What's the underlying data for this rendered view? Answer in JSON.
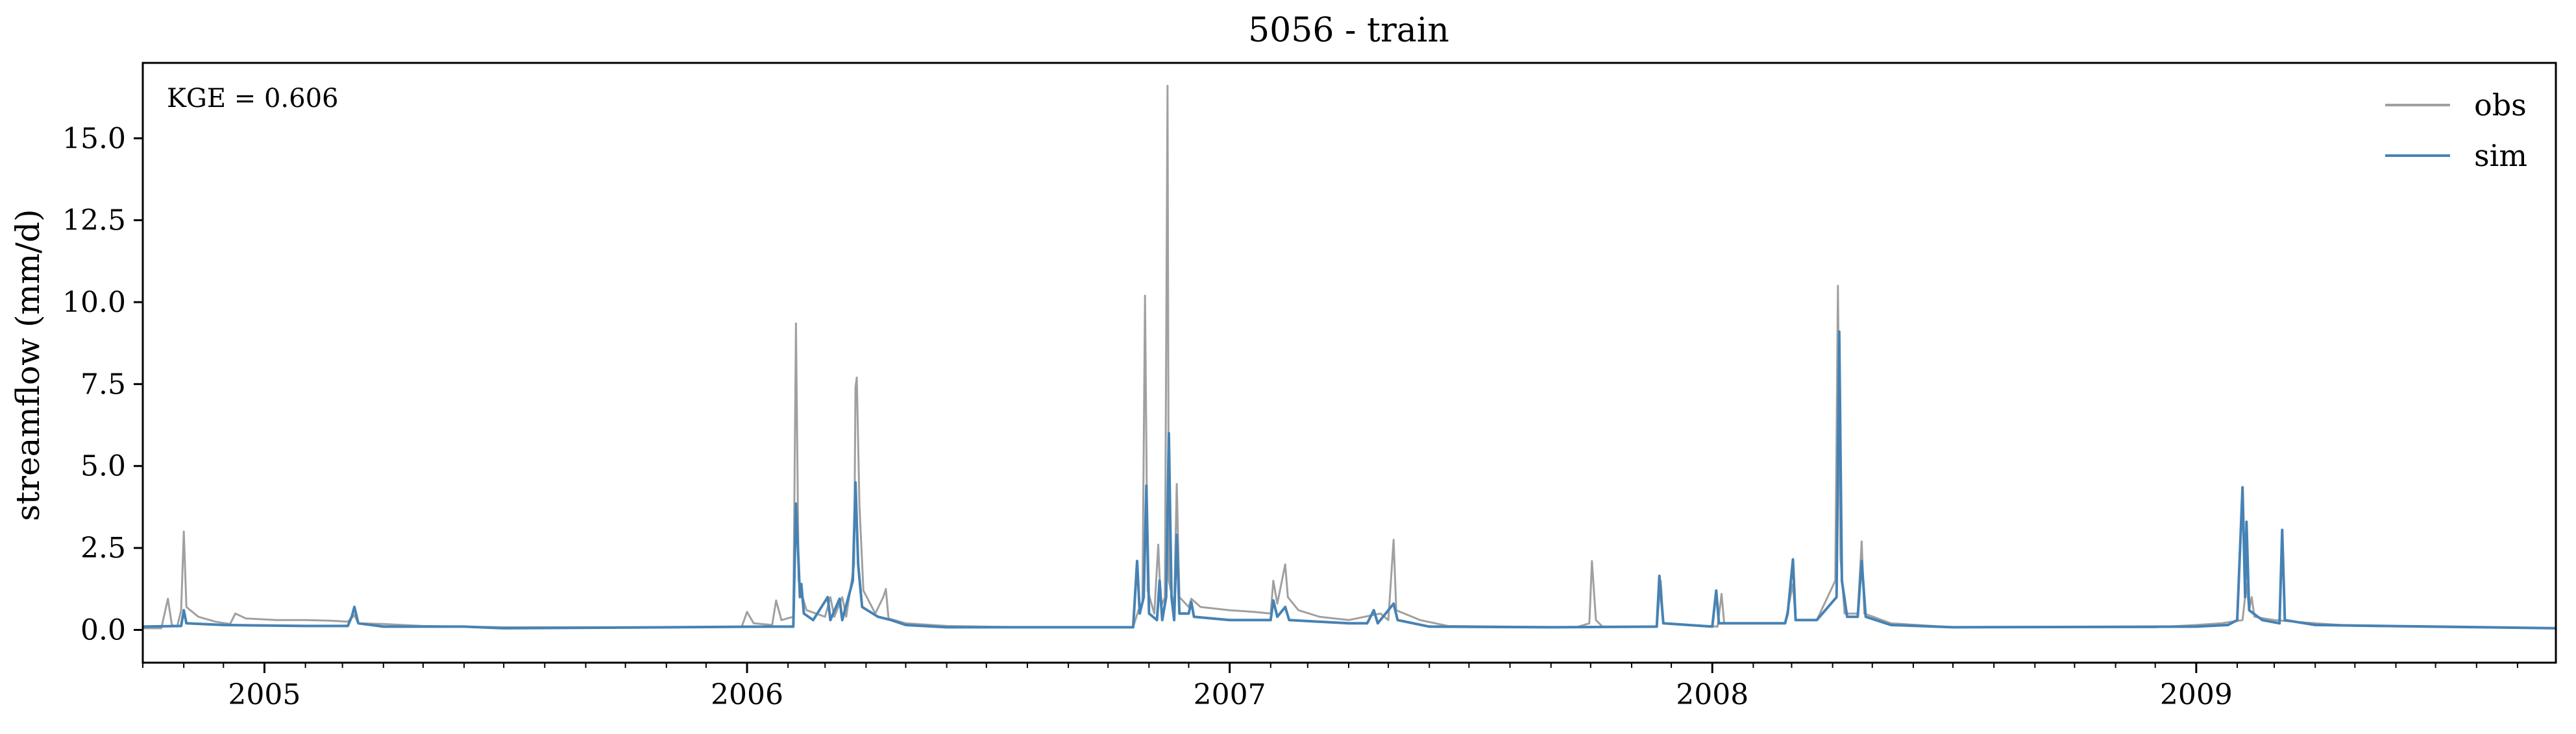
{
  "chart_data": {
    "type": "line",
    "title": "5056 - train",
    "xlabel": "",
    "ylabel": "streamflow (mm/d)",
    "annotation": "KGE = 0.606",
    "legend_position": "top-right",
    "grid": false,
    "xlim": [
      "2004-10-01",
      "2009-09-30"
    ],
    "ylim": [
      -1.0,
      17.3
    ],
    "x_ticks": [
      {
        "date": "2005-01-01",
        "label": "2005"
      },
      {
        "date": "2006-01-01",
        "label": "2006"
      },
      {
        "date": "2007-01-01",
        "label": "2007"
      },
      {
        "date": "2008-01-01",
        "label": "2008"
      },
      {
        "date": "2009-01-01",
        "label": "2009"
      }
    ],
    "y_ticks": [
      0.0,
      2.5,
      5.0,
      7.5,
      10.0,
      12.5,
      15.0
    ],
    "y_tick_labels": [
      "0.0",
      "2.5",
      "5.0",
      "7.5",
      "10.0",
      "12.5",
      "15.0"
    ],
    "series": [
      {
        "name": "obs",
        "color": "#a0a0a0",
        "points": [
          [
            "2004-10-01",
            0.05
          ],
          [
            "2004-10-15",
            0.05
          ],
          [
            "2004-10-20",
            0.95
          ],
          [
            "2004-10-23",
            0.15
          ],
          [
            "2004-10-27",
            0.1
          ],
          [
            "2004-10-30",
            0.6
          ],
          [
            "2004-11-01",
            3.0
          ],
          [
            "2004-11-03",
            0.7
          ],
          [
            "2004-11-12",
            0.4
          ],
          [
            "2004-11-25",
            0.25
          ],
          [
            "2004-12-06",
            0.18
          ],
          [
            "2004-12-10",
            0.5
          ],
          [
            "2004-12-18",
            0.35
          ],
          [
            "2005-01-10",
            0.3
          ],
          [
            "2005-02-01",
            0.3
          ],
          [
            "2005-02-20",
            0.28
          ],
          [
            "2005-03-05",
            0.25
          ],
          [
            "2005-03-10",
            0.45
          ],
          [
            "2005-03-13",
            0.2
          ],
          [
            "2005-04-01",
            0.18
          ],
          [
            "2005-05-01",
            0.12
          ],
          [
            "2005-07-01",
            0.08
          ],
          [
            "2005-12-01",
            0.08
          ],
          [
            "2005-12-28",
            0.1
          ],
          [
            "2006-01-01",
            0.55
          ],
          [
            "2006-01-06",
            0.2
          ],
          [
            "2006-01-20",
            0.15
          ],
          [
            "2006-01-23",
            0.9
          ],
          [
            "2006-01-27",
            0.3
          ],
          [
            "2006-02-05",
            0.4
          ],
          [
            "2006-02-07",
            9.35
          ],
          [
            "2006-02-09",
            1.5
          ],
          [
            "2006-02-12",
            1.0
          ],
          [
            "2006-02-15",
            0.6
          ],
          [
            "2006-03-01",
            0.4
          ],
          [
            "2006-03-05",
            1.0
          ],
          [
            "2006-03-08",
            0.4
          ],
          [
            "2006-03-14",
            1.0
          ],
          [
            "2006-03-17",
            0.4
          ],
          [
            "2006-03-23",
            2.0
          ],
          [
            "2006-03-24",
            7.4
          ],
          [
            "2006-03-25",
            7.7
          ],
          [
            "2006-03-27",
            3.8
          ],
          [
            "2006-03-30",
            1.2
          ],
          [
            "2006-04-08",
            0.5
          ],
          [
            "2006-04-14",
            1.0
          ],
          [
            "2006-04-16",
            1.25
          ],
          [
            "2006-04-18",
            0.35
          ],
          [
            "2006-05-01",
            0.2
          ],
          [
            "2006-06-01",
            0.12
          ],
          [
            "2006-08-01",
            0.08
          ],
          [
            "2006-10-20",
            0.08
          ],
          [
            "2006-10-24",
            0.6
          ],
          [
            "2006-10-27",
            0.8
          ],
          [
            "2006-10-29",
            10.2
          ],
          [
            "2006-10-31",
            1.2
          ],
          [
            "2006-11-05",
            0.5
          ],
          [
            "2006-11-08",
            2.6
          ],
          [
            "2006-11-10",
            0.7
          ],
          [
            "2006-11-13",
            1.0
          ],
          [
            "2006-11-15",
            16.6
          ],
          [
            "2006-11-16",
            1.5
          ],
          [
            "2006-11-20",
            0.7
          ],
          [
            "2006-11-22",
            4.45
          ],
          [
            "2006-11-24",
            1.0
          ],
          [
            "2006-12-01",
            0.7
          ],
          [
            "2006-12-03",
            0.95
          ],
          [
            "2006-12-10",
            0.7
          ],
          [
            "2007-01-01",
            0.6
          ],
          [
            "2007-01-20",
            0.55
          ],
          [
            "2007-02-01",
            0.5
          ],
          [
            "2007-02-03",
            1.5
          ],
          [
            "2007-02-06",
            0.8
          ],
          [
            "2007-02-12",
            2.0
          ],
          [
            "2007-02-14",
            1.0
          ],
          [
            "2007-02-22",
            0.6
          ],
          [
            "2007-03-10",
            0.4
          ],
          [
            "2007-04-01",
            0.3
          ],
          [
            "2007-04-25",
            0.5
          ],
          [
            "2007-05-01",
            0.3
          ],
          [
            "2007-05-05",
            2.75
          ],
          [
            "2007-05-07",
            0.6
          ],
          [
            "2007-05-25",
            0.3
          ],
          [
            "2007-06-15",
            0.12
          ],
          [
            "2007-09-20",
            0.08
          ],
          [
            "2007-09-30",
            0.2
          ],
          [
            "2007-10-02",
            2.1
          ],
          [
            "2007-10-05",
            0.3
          ],
          [
            "2007-10-10",
            0.1
          ],
          [
            "2007-11-20",
            0.1
          ],
          [
            "2007-11-23",
            1.5
          ],
          [
            "2007-11-25",
            0.2
          ],
          [
            "2008-01-05",
            0.1
          ],
          [
            "2008-01-08",
            1.1
          ],
          [
            "2008-01-10",
            0.2
          ],
          [
            "2008-02-25",
            0.2
          ],
          [
            "2008-02-27",
            0.6
          ],
          [
            "2008-03-02",
            1.4
          ],
          [
            "2008-03-04",
            0.3
          ],
          [
            "2008-03-20",
            0.3
          ],
          [
            "2008-04-03",
            1.5
          ],
          [
            "2008-04-05",
            10.5
          ],
          [
            "2008-04-07",
            2.2
          ],
          [
            "2008-04-10",
            0.5
          ],
          [
            "2008-04-20",
            0.5
          ],
          [
            "2008-04-23",
            2.7
          ],
          [
            "2008-04-25",
            0.5
          ],
          [
            "2008-05-15",
            0.2
          ],
          [
            "2008-07-01",
            0.08
          ],
          [
            "2008-12-01",
            0.08
          ],
          [
            "2009-01-01",
            0.15
          ],
          [
            "2009-01-20",
            0.2
          ],
          [
            "2009-02-05",
            0.3
          ],
          [
            "2009-02-08",
            1.4
          ],
          [
            "2009-02-10",
            0.6
          ],
          [
            "2009-02-12",
            1.0
          ],
          [
            "2009-02-14",
            0.4
          ],
          [
            "2009-03-01",
            0.3
          ],
          [
            "2009-04-01",
            0.2
          ],
          [
            "2009-05-01",
            0.12
          ],
          [
            "2009-09-30",
            0.05
          ]
        ]
      },
      {
        "name": "sim",
        "color": "#4682b4",
        "points": [
          [
            "2004-10-01",
            0.1
          ],
          [
            "2004-10-30",
            0.12
          ],
          [
            "2004-11-01",
            0.6
          ],
          [
            "2004-11-03",
            0.2
          ],
          [
            "2004-12-01",
            0.15
          ],
          [
            "2005-02-01",
            0.12
          ],
          [
            "2005-03-05",
            0.12
          ],
          [
            "2005-03-08",
            0.4
          ],
          [
            "2005-03-10",
            0.7
          ],
          [
            "2005-03-13",
            0.2
          ],
          [
            "2005-04-01",
            0.1
          ],
          [
            "2005-06-01",
            0.1
          ],
          [
            "2005-07-01",
            0.05
          ],
          [
            "2006-01-20",
            0.1
          ],
          [
            "2006-02-05",
            0.1
          ],
          [
            "2006-02-07",
            3.85
          ],
          [
            "2006-02-09",
            2.0
          ],
          [
            "2006-02-10",
            1.0
          ],
          [
            "2006-02-11",
            1.4
          ],
          [
            "2006-02-13",
            0.5
          ],
          [
            "2006-02-20",
            0.3
          ],
          [
            "2006-03-03",
            1.0
          ],
          [
            "2006-03-05",
            0.3
          ],
          [
            "2006-03-12",
            0.95
          ],
          [
            "2006-03-14",
            0.3
          ],
          [
            "2006-03-22",
            1.5
          ],
          [
            "2006-03-24",
            4.5
          ],
          [
            "2006-03-26",
            2.0
          ],
          [
            "2006-03-29",
            0.7
          ],
          [
            "2006-04-10",
            0.4
          ],
          [
            "2006-04-20",
            0.3
          ],
          [
            "2006-05-01",
            0.15
          ],
          [
            "2006-06-01",
            0.08
          ],
          [
            "2006-10-15",
            0.08
          ],
          [
            "2006-10-20",
            0.08
          ],
          [
            "2006-10-23",
            2.1
          ],
          [
            "2006-10-25",
            0.5
          ],
          [
            "2006-10-28",
            1.0
          ],
          [
            "2006-10-30",
            4.4
          ],
          [
            "2006-11-01",
            0.5
          ],
          [
            "2006-11-07",
            0.3
          ],
          [
            "2006-11-09",
            1.5
          ],
          [
            "2006-11-11",
            0.3
          ],
          [
            "2006-11-14",
            1.0
          ],
          [
            "2006-11-16",
            6.0
          ],
          [
            "2006-11-18",
            1.0
          ],
          [
            "2006-11-20",
            0.3
          ],
          [
            "2006-11-22",
            2.9
          ],
          [
            "2006-11-24",
            0.5
          ],
          [
            "2006-12-01",
            0.5
          ],
          [
            "2006-12-03",
            0.85
          ],
          [
            "2006-12-05",
            0.4
          ],
          [
            "2007-01-01",
            0.3
          ],
          [
            "2007-02-01",
            0.3
          ],
          [
            "2007-02-03",
            0.9
          ],
          [
            "2007-02-06",
            0.4
          ],
          [
            "2007-02-12",
            0.7
          ],
          [
            "2007-02-15",
            0.3
          ],
          [
            "2007-04-01",
            0.2
          ],
          [
            "2007-04-15",
            0.2
          ],
          [
            "2007-04-20",
            0.6
          ],
          [
            "2007-04-23",
            0.2
          ],
          [
            "2007-05-05",
            0.8
          ],
          [
            "2007-05-08",
            0.3
          ],
          [
            "2007-06-01",
            0.1
          ],
          [
            "2007-09-01",
            0.08
          ],
          [
            "2007-11-20",
            0.1
          ],
          [
            "2007-11-22",
            1.65
          ],
          [
            "2007-11-25",
            0.2
          ],
          [
            "2008-01-01",
            0.1
          ],
          [
            "2008-01-04",
            1.2
          ],
          [
            "2008-01-06",
            0.2
          ],
          [
            "2008-02-25",
            0.2
          ],
          [
            "2008-02-27",
            0.5
          ],
          [
            "2008-03-02",
            2.15
          ],
          [
            "2008-03-04",
            0.3
          ],
          [
            "2008-03-20",
            0.3
          ],
          [
            "2008-04-04",
            1.0
          ],
          [
            "2008-04-06",
            9.1
          ],
          [
            "2008-04-08",
            1.5
          ],
          [
            "2008-04-12",
            0.4
          ],
          [
            "2008-04-20",
            0.4
          ],
          [
            "2008-04-23",
            2.1
          ],
          [
            "2008-04-26",
            0.4
          ],
          [
            "2008-05-15",
            0.15
          ],
          [
            "2008-07-01",
            0.08
          ],
          [
            "2009-01-01",
            0.1
          ],
          [
            "2009-01-25",
            0.15
          ],
          [
            "2009-02-01",
            0.3
          ],
          [
            "2009-02-05",
            4.35
          ],
          [
            "2009-02-07",
            1.0
          ],
          [
            "2009-02-08",
            3.3
          ],
          [
            "2009-02-10",
            0.6
          ],
          [
            "2009-02-20",
            0.3
          ],
          [
            "2009-03-05",
            0.2
          ],
          [
            "2009-03-07",
            3.05
          ],
          [
            "2009-03-09",
            0.3
          ],
          [
            "2009-04-01",
            0.15
          ],
          [
            "2009-09-30",
            0.05
          ]
        ]
      }
    ]
  }
}
